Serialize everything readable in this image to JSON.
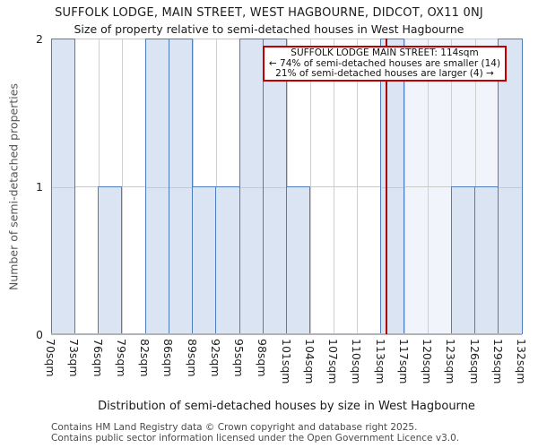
{
  "titles": {
    "line1": "SUFFOLK LODGE, MAIN STREET, WEST HAGBOURNE, DIDCOT, OX11 0NJ",
    "line2": "Size of property relative to semi-detached houses in West Hagbourne"
  },
  "footer": {
    "line1": "Contains HM Land Registry data © Crown copyright and database right 2025.",
    "line2": "Contains public sector information licensed under the Open Government Licence v3.0."
  },
  "colors": {
    "bar_fill": "#dbe4f2",
    "bar_border": "#4d7cc0",
    "pale_region": "#f1f5fb",
    "red_marker": "#aa0000",
    "annotation_border": "#c00000",
    "grid": "#cfcfcf",
    "axis": "#b0b3ba"
  },
  "chart_data": {
    "type": "bar",
    "title": "SUFFOLK LODGE, MAIN STREET, WEST HAGBOURNE, DIDCOT, OX11 0NJ",
    "subtitle": "Size of property relative to semi-detached houses in West Hagbourne",
    "xlabel": "Distribution of semi-detached houses by size in West Hagbourne",
    "ylabel": "Number of semi-detached properties",
    "bin_edges_sqm": [
      70,
      73,
      76,
      79,
      82,
      86,
      89,
      92,
      95,
      98,
      101,
      104,
      107,
      110,
      113,
      117,
      120,
      123,
      126,
      129,
      132
    ],
    "x_tick_labels": [
      "70sqm",
      "73sqm",
      "76sqm",
      "79sqm",
      "82sqm",
      "86sqm",
      "89sqm",
      "92sqm",
      "95sqm",
      "98sqm",
      "101sqm",
      "104sqm",
      "107sqm",
      "110sqm",
      "113sqm",
      "117sqm",
      "120sqm",
      "123sqm",
      "126sqm",
      "129sqm",
      "132sqm"
    ],
    "counts": [
      2,
      0,
      1,
      0,
      2,
      2,
      1,
      1,
      2,
      2,
      1,
      0,
      0,
      0,
      2,
      0,
      0,
      1,
      1,
      2
    ],
    "y_ticks": [
      "0",
      "1",
      "2"
    ],
    "ylim": [
      0,
      2
    ],
    "grid": true,
    "legend": null,
    "subject": {
      "name": "SUFFOLK LODGE MAIN STREET",
      "size_sqm": 114,
      "marker": "red-vertical-line",
      "shaded_region": "pale blue from marker to right edge"
    },
    "annotation": {
      "line1": "SUFFOLK LODGE MAIN STREET: 114sqm",
      "line2": "← 74% of semi-detached houses are smaller (14)",
      "line3": "21% of semi-detached houses are larger (4) →"
    }
  }
}
